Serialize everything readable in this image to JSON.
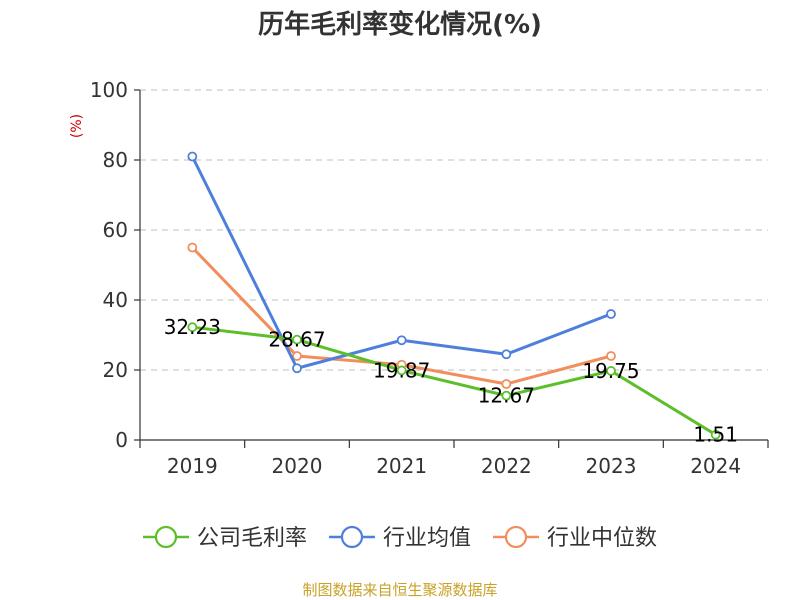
{
  "chart_data": {
    "type": "line",
    "title": "历年毛利率变化情况(%)",
    "ylabel": "(%)",
    "xlabel": "",
    "categories": [
      "2019",
      "2020",
      "2021",
      "2022",
      "2023",
      "2024"
    ],
    "ylim": [
      0,
      100
    ],
    "yticks": [
      0,
      20,
      40,
      60,
      80,
      100
    ],
    "grid": true,
    "legend_position": "bottom",
    "series": [
      {
        "name": "公司毛利率",
        "color": "#5bbf2a",
        "values": [
          32.23,
          28.67,
          19.87,
          12.67,
          19.75,
          1.51
        ],
        "labels": [
          "32.23",
          "28.67",
          "19.87",
          "12.67",
          "19.75",
          "1.51"
        ]
      },
      {
        "name": "行业均值",
        "color": "#4f7fdc",
        "values": [
          81,
          20.5,
          28.5,
          24.5,
          36,
          null
        ]
      },
      {
        "name": "行业中位数",
        "color": "#f28e5c",
        "values": [
          55,
          24,
          21.5,
          16,
          24,
          null
        ]
      }
    ],
    "source": "制图数据来自恒生聚源数据库"
  }
}
